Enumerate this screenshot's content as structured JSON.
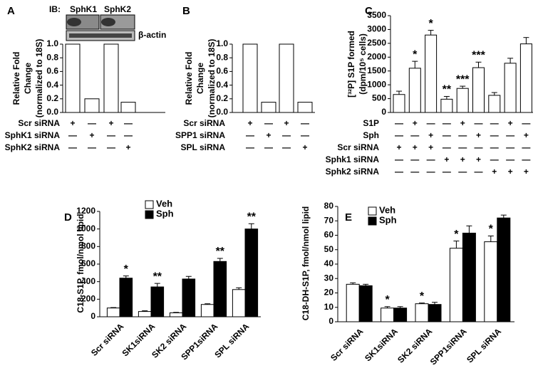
{
  "chart_data": [
    {
      "type": "bar",
      "label": "A",
      "blot": {
        "prefix": "IB:",
        "lanes": [
          "SphK1",
          "SphK2"
        ],
        "loading": "β-actin"
      },
      "ylabel": [
        "Relative Fold",
        "Change",
        "(normalized to 18S)"
      ],
      "values": [
        1.0,
        0.2,
        1.0,
        0.15
      ],
      "color": "#ffffff",
      "ylim": [
        0,
        1.0
      ],
      "yticks": [
        {
          "value": 0,
          "label": "0.0"
        },
        0.2,
        0.4,
        0.6,
        0.8,
        {
          "value": 1.0,
          "label": "1.0"
        }
      ],
      "conditions": [
        {
          "label": "Scr siRNA",
          "signs": [
            "+",
            "—",
            "+",
            "—"
          ]
        },
        {
          "label": "SphK1 siRNA",
          "signs": [
            "—",
            "+",
            "—",
            "—"
          ]
        },
        {
          "label": "SphK2 siRNA",
          "signs": [
            "—",
            "—",
            "—",
            "+"
          ]
        }
      ]
    },
    {
      "type": "bar",
      "label": "B",
      "ylabel": [
        "Relative Fold",
        "Change",
        "(normalized to 18S)"
      ],
      "values": [
        1.0,
        0.15,
        1.0,
        0.15
      ],
      "color": "#ffffff",
      "ylim": [
        0,
        1.0
      ],
      "yticks": [
        {
          "value": 0,
          "label": "0.0"
        },
        0.2,
        0.4,
        0.6,
        0.8,
        {
          "value": 1.0,
          "label": "1.0"
        }
      ],
      "conditions": [
        {
          "label": "Scr siRNA",
          "signs": [
            "+",
            "—",
            "+",
            "—"
          ]
        },
        {
          "label": "SPP1 siRNA",
          "signs": [
            "—",
            "+",
            "—",
            "—"
          ]
        },
        {
          "label": "SPL siRNA",
          "signs": [
            "—",
            "—",
            "—",
            "+"
          ]
        }
      ]
    },
    {
      "type": "bar",
      "label": "C",
      "ylabel": [
        "[³²P] S1P formed",
        "(dpm/10⁵ cells)"
      ],
      "values": [
        650,
        1600,
        2800,
        480,
        870,
        1620,
        620,
        1780,
        2480
      ],
      "errors": [
        120,
        250,
        170,
        100,
        80,
        200,
        100,
        180,
        230
      ],
      "annotations": [
        null,
        "*",
        "*",
        "**",
        "***",
        "***",
        null,
        null,
        null
      ],
      "color": "#ffffff",
      "ylim": [
        0,
        3500
      ],
      "yticks": [
        0,
        500,
        1000,
        1500,
        2000,
        2500,
        3000,
        3500
      ],
      "conditions": [
        {
          "label": "S1P",
          "signs": [
            "—",
            "+",
            "—",
            "—",
            "+",
            "—",
            "—",
            "+",
            "—"
          ]
        },
        {
          "label": "Sph",
          "signs": [
            "—",
            "—",
            "+",
            "—",
            "—",
            "+",
            "—",
            "—",
            "+"
          ]
        },
        {
          "label": "Scr siRNA",
          "signs": [
            "+",
            "+",
            "+",
            "—",
            "—",
            "—",
            "—",
            "—",
            "—"
          ]
        },
        {
          "label": "Sphk1 siRNA",
          "signs": [
            "—",
            "—",
            "—",
            "+",
            "+",
            "+",
            "—",
            "—",
            "—"
          ]
        },
        {
          "label": "Sphk2 siRNA",
          "signs": [
            "—",
            "—",
            "—",
            "—",
            "—",
            "—",
            "+",
            "+",
            "+"
          ]
        }
      ]
    },
    {
      "type": "grouped-bar",
      "label": "D",
      "ylabel": [
        "C18-S1P, fmol/nmol lipid"
      ],
      "categories": [
        "Scr siRNA",
        "SK1siRNA",
        "SK2 siRNA",
        "SPP1siRNA",
        "SPL siRNA"
      ],
      "series": [
        {
          "name": "Veh",
          "color": "#ffffff",
          "values": [
            100,
            60,
            45,
            140,
            310
          ],
          "errors": [
            5,
            8,
            5,
            8,
            20
          ],
          "annotations": [
            null,
            null,
            null,
            null,
            null
          ]
        },
        {
          "name": "Sph",
          "color": "#000000",
          "values": [
            440,
            340,
            430,
            630,
            1000
          ],
          "errors": [
            25,
            40,
            30,
            35,
            60
          ],
          "annotations": [
            "*",
            "**",
            null,
            "**",
            "**"
          ]
        }
      ],
      "ylim": [
        0,
        1200
      ],
      "yticks": [
        0,
        200,
        400,
        600,
        800,
        1000,
        1200
      ],
      "legend": "top-left"
    },
    {
      "type": "grouped-bar",
      "label": "E",
      "ylabel": [
        "C18-DH-S1P, fmol/nmol lipid"
      ],
      "categories": [
        "Scr siRNA",
        "SK1siRNA",
        "SK2 siRNA",
        "SPP1siRNA",
        "SPL siRNA"
      ],
      "series": [
        {
          "name": "Veh",
          "color": "#ffffff",
          "values": [
            26,
            9.5,
            12.5,
            51,
            55.5
          ],
          "errors": [
            1,
            1,
            0.5,
            5,
            4
          ],
          "annotations": [
            null,
            "*",
            "*",
            "*",
            "*"
          ]
        },
        {
          "name": "Sph",
          "color": "#000000",
          "values": [
            25,
            9.5,
            12,
            61.5,
            72
          ],
          "errors": [
            1,
            1,
            1.5,
            5,
            2
          ],
          "annotations": [
            null,
            null,
            null,
            null,
            null
          ]
        }
      ],
      "ylim": [
        0,
        80
      ],
      "yticks": [
        0,
        10,
        20,
        30,
        40,
        50,
        60,
        70,
        80
      ],
      "legend": "top-left"
    }
  ]
}
